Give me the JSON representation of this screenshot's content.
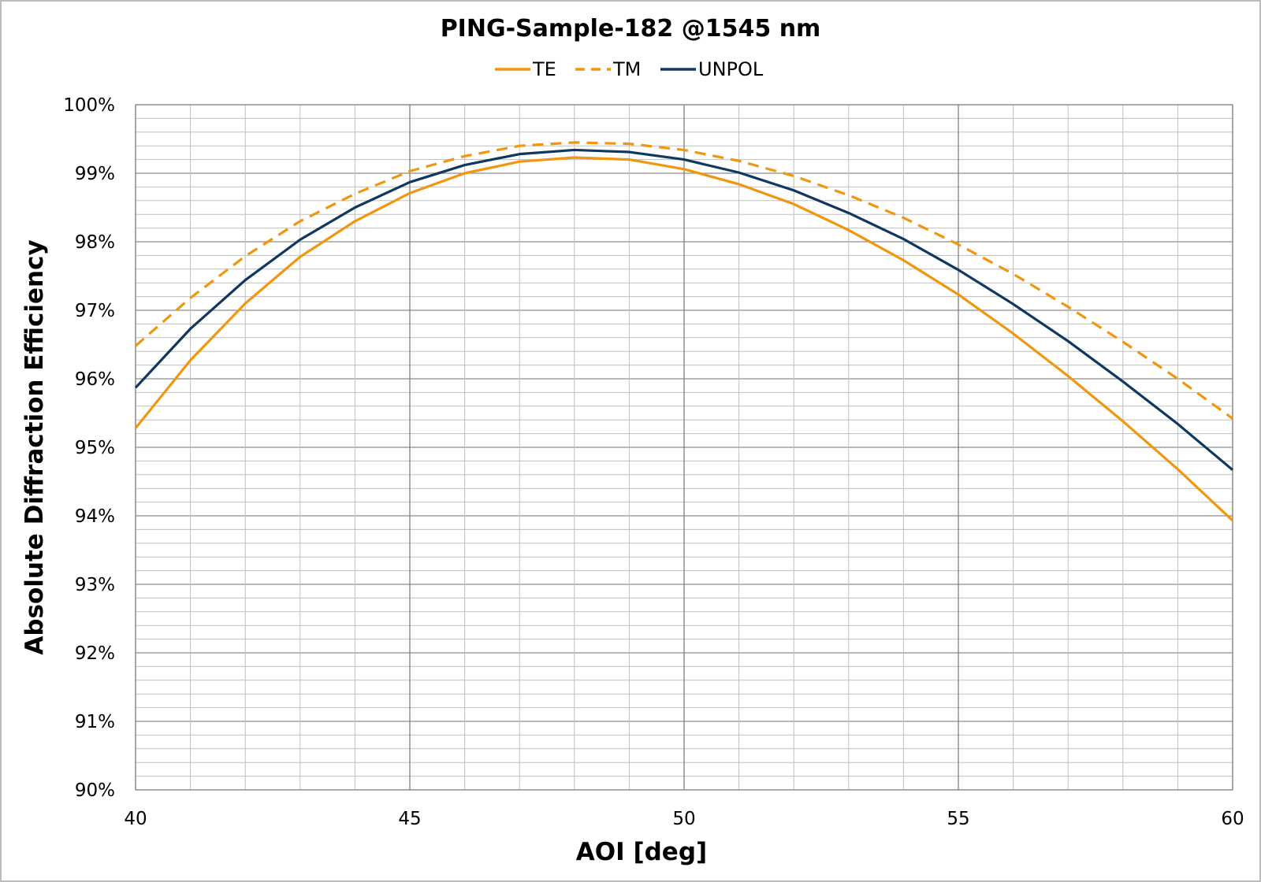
{
  "chart_data": {
    "type": "line",
    "title": "PING-Sample-182 @1545 nm",
    "xlabel": "AOI [deg]",
    "ylabel": "Absolute Diffraction Efficiency",
    "xlim": [
      40,
      60
    ],
    "ylim": [
      90,
      100
    ],
    "x_ticks": [
      40,
      45,
      50,
      55,
      60
    ],
    "y_ticks": [
      90,
      91,
      92,
      93,
      94,
      95,
      96,
      97,
      98,
      99,
      100
    ],
    "y_tick_format": "%",
    "grid": true,
    "legend_position": "top-center",
    "x": [
      40,
      41,
      42,
      43,
      44,
      45,
      46,
      47,
      48,
      49,
      50,
      51,
      52,
      53,
      54,
      55,
      56,
      57,
      58,
      59,
      60
    ],
    "series": [
      {
        "name": "TE",
        "color": "#F0960F",
        "dash": "solid",
        "values": [
          95.28,
          96.27,
          97.1,
          97.78,
          98.3,
          98.71,
          99.0,
          99.17,
          99.23,
          99.2,
          99.06,
          98.84,
          98.55,
          98.17,
          97.73,
          97.23,
          96.66,
          96.04,
          95.38,
          94.68,
          93.93
        ]
      },
      {
        "name": "TM",
        "color": "#F0960F",
        "dash": "dashed",
        "values": [
          96.48,
          97.18,
          97.79,
          98.3,
          98.7,
          99.03,
          99.25,
          99.4,
          99.45,
          99.43,
          99.34,
          99.18,
          98.96,
          98.68,
          98.35,
          97.96,
          97.53,
          97.05,
          96.54,
          96.0,
          95.42
        ]
      },
      {
        "name": "UNPOL",
        "color": "#0F3861",
        "dash": "solid",
        "values": [
          95.87,
          96.73,
          97.44,
          98.03,
          98.5,
          98.87,
          99.12,
          99.28,
          99.34,
          99.31,
          99.2,
          99.01,
          98.75,
          98.42,
          98.04,
          97.59,
          97.09,
          96.55,
          95.96,
          95.34,
          94.67
        ]
      }
    ]
  }
}
